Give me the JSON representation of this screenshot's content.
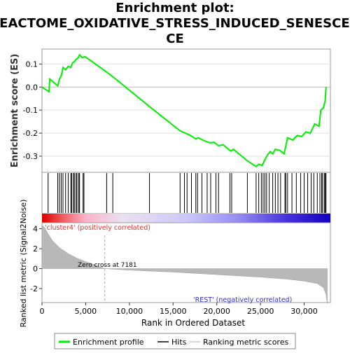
{
  "chart_data": {
    "type": "line",
    "title_lines": [
      "Enrichment plot:",
      "REACTOME_OXIDATIVE_STRESS_INDUCED_SENESCEN",
      "CE"
    ],
    "xlabel": "Rank in Ordered Dataset",
    "xlim": [
      0,
      33000
    ],
    "x_ticks": [
      0,
      5000,
      10000,
      15000,
      20000,
      25000,
      30000
    ],
    "x_tick_labels": [
      "0",
      "5,000",
      "10,000",
      "15,000",
      "20,000",
      "25,000",
      "30,000"
    ],
    "es_panel": {
      "ylabel": "Enrichment score (ES)",
      "ylim": [
        -0.37,
        0.165
      ],
      "y_ticks": [
        0.1,
        0.0,
        -0.1,
        -0.2,
        -0.3
      ],
      "y_tick_labels": [
        "0.1",
        "0.0",
        "-0.1",
        "-0.2",
        "-0.3"
      ],
      "color": "#00ee00",
      "points": [
        [
          0,
          0.0
        ],
        [
          800,
          -0.02
        ],
        [
          900,
          0.035
        ],
        [
          1800,
          0.005
        ],
        [
          2000,
          0.035
        ],
        [
          2200,
          0.05
        ],
        [
          2400,
          0.085
        ],
        [
          2700,
          0.075
        ],
        [
          3000,
          0.09
        ],
        [
          3300,
          0.085
        ],
        [
          3500,
          0.105
        ],
        [
          3700,
          0.11
        ],
        [
          3900,
          0.12
        ],
        [
          4100,
          0.125
        ],
        [
          4300,
          0.14
        ],
        [
          4600,
          0.128
        ],
        [
          4900,
          0.132
        ],
        [
          5000,
          0.13
        ],
        [
          7400,
          0.065
        ],
        [
          8200,
          0.042
        ],
        [
          12300,
          -0.085
        ],
        [
          15800,
          -0.19
        ],
        [
          16400,
          -0.2
        ],
        [
          17000,
          -0.21
        ],
        [
          17600,
          -0.225
        ],
        [
          17900,
          -0.22
        ],
        [
          18500,
          -0.232
        ],
        [
          19200,
          -0.242
        ],
        [
          19700,
          -0.24
        ],
        [
          20200,
          -0.255
        ],
        [
          20700,
          -0.25
        ],
        [
          21600,
          -0.278
        ],
        [
          21900,
          -0.27
        ],
        [
          23500,
          -0.32
        ],
        [
          24500,
          -0.345
        ],
        [
          24800,
          -0.335
        ],
        [
          25200,
          -0.34
        ],
        [
          25500,
          -0.315
        ],
        [
          25800,
          -0.295
        ],
        [
          26100,
          -0.28
        ],
        [
          26400,
          -0.29
        ],
        [
          26700,
          -0.27
        ],
        [
          27200,
          -0.275
        ],
        [
          27700,
          -0.29
        ],
        [
          27900,
          -0.255
        ],
        [
          28100,
          -0.22
        ],
        [
          28700,
          -0.23
        ],
        [
          29200,
          -0.21
        ],
        [
          29700,
          -0.215
        ],
        [
          30200,
          -0.195
        ],
        [
          30700,
          -0.2
        ],
        [
          31200,
          -0.16
        ],
        [
          31700,
          -0.17
        ],
        [
          31900,
          -0.1
        ],
        [
          32200,
          -0.09
        ],
        [
          32400,
          -0.06
        ],
        [
          32500,
          0.0
        ]
      ]
    },
    "hits_x": [
      700,
      1800,
      2000,
      2200,
      2400,
      2700,
      3000,
      3300,
      3400,
      3600,
      3700,
      3900,
      4000,
      4200,
      4300,
      4700,
      4800,
      7400,
      8100,
      12300,
      15800,
      16300,
      16600,
      17100,
      17600,
      17800,
      18300,
      18900,
      19300,
      19900,
      20200,
      21500,
      21700,
      23500,
      24500,
      24800,
      25100,
      25300,
      25500,
      25700,
      26000,
      26400,
      26700,
      27000,
      27300,
      27800,
      27900,
      28100,
      28600,
      29100,
      29600,
      30000,
      30400,
      30800,
      31100,
      31500,
      31800,
      32000,
      32100,
      32300,
      32400,
      32500
    ],
    "ranked_panel": {
      "ylabel": "Ranked list metric (Signal2Noise)",
      "ylim": [
        -3.4,
        4.6
      ],
      "y_ticks": [
        4,
        2,
        0,
        -2
      ],
      "y_tick_labels": [
        "4",
        "2",
        "0",
        "-2"
      ],
      "curve": [
        [
          0,
          4.4
        ],
        [
          300,
          4.1
        ],
        [
          700,
          3.5
        ],
        [
          1200,
          2.8
        ],
        [
          2000,
          2.1
        ],
        [
          3000,
          1.5
        ],
        [
          4000,
          1.05
        ],
        [
          5000,
          0.7
        ],
        [
          6000,
          0.4
        ],
        [
          7181,
          0.0
        ],
        [
          10000,
          -0.15
        ],
        [
          15000,
          -0.35
        ],
        [
          20000,
          -0.6
        ],
        [
          25000,
          -0.85
        ],
        [
          28000,
          -1.05
        ],
        [
          30000,
          -1.25
        ],
        [
          31500,
          -1.5
        ],
        [
          32200,
          -1.9
        ],
        [
          32500,
          -2.6
        ],
        [
          32650,
          -3.5
        ]
      ],
      "zero_cross_label": "Zero cross at 7181",
      "zero_cross_x": 7181,
      "pos_label": "'cluster4' (positively correlated)",
      "neg_label": "'REST' (negatively correlated)"
    },
    "legend": [
      {
        "label": "Enrichment profile",
        "color": "#00ee00"
      },
      {
        "label": "Hits",
        "color": "#000000"
      },
      {
        "label": "Ranking metric scores",
        "color": "#cccccc"
      }
    ]
  }
}
